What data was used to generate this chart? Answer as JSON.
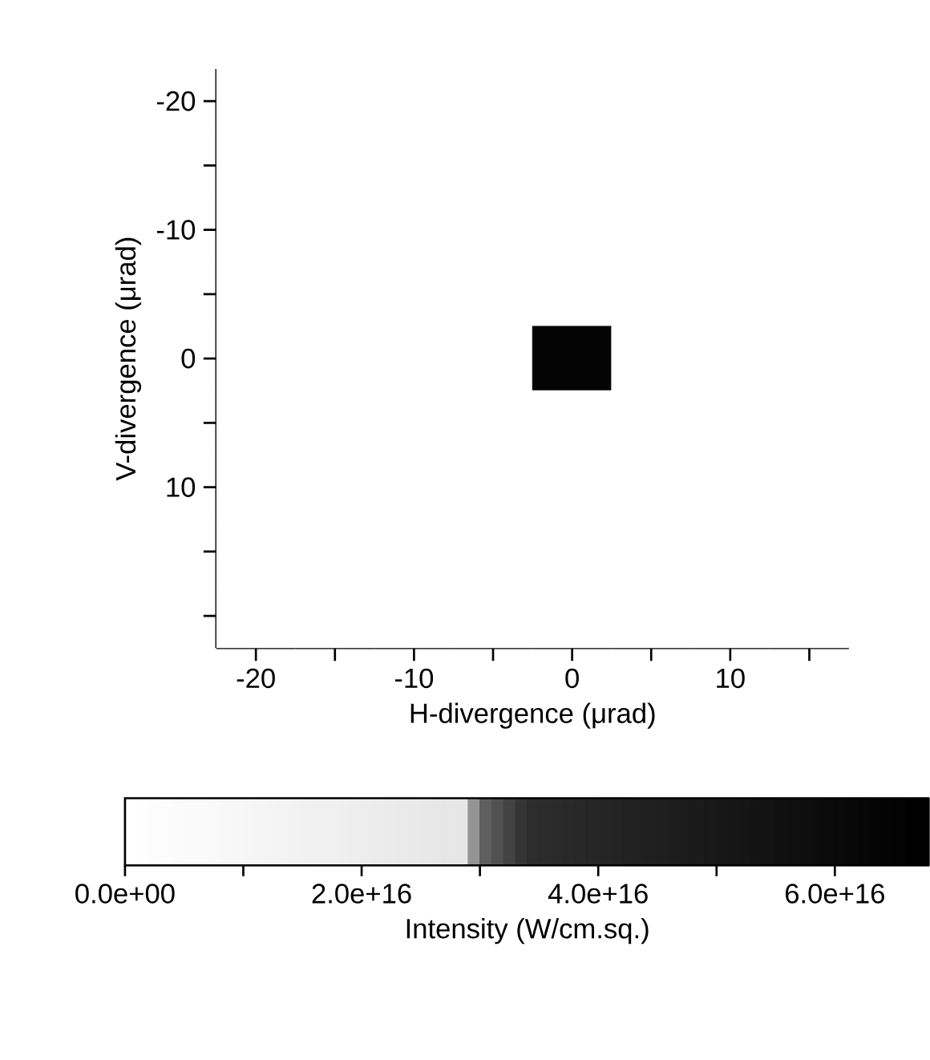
{
  "chart_data": {
    "type": "heatmap",
    "xlabel": "H-divergence  (μrad)",
    "ylabel": "V-divergence  (μrad)",
    "clabel": "Intensity  (W/cm.sq.)",
    "clim": [
      0,
      6.8e+16
    ],
    "cticks": [
      {
        "value": 0,
        "label": "0.0e+00"
      },
      {
        "value": 1e+16,
        "label": null
      },
      {
        "value": 2e+16,
        "label": "2.0e+16"
      },
      {
        "value": 3e+16,
        "label": null
      },
      {
        "value": 4e+16,
        "label": "4.0e+16"
      },
      {
        "value": 5e+16,
        "label": null
      },
      {
        "value": 6e+16,
        "label": "6.0e+16"
      }
    ],
    "categories": [
      "-20",
      null,
      "-10",
      null,
      "0",
      null,
      "10",
      null
    ],
    "y_categories": [
      "-20",
      null,
      "-10",
      null,
      "0",
      null,
      "10",
      null,
      null
    ],
    "cells": [
      [
        0,
        0,
        0,
        0,
        0,
        0,
        0,
        0
      ],
      [
        0,
        0,
        0,
        0,
        0,
        0,
        0,
        0
      ],
      [
        0,
        0,
        0,
        0,
        0,
        0,
        0,
        0
      ],
      [
        0,
        0,
        0,
        0,
        0,
        0,
        0,
        0
      ],
      [
        0,
        0,
        0,
        0,
        6.5e+16,
        0,
        0,
        0
      ],
      [
        0,
        0,
        0,
        0,
        0,
        0,
        0,
        0
      ],
      [
        0,
        0,
        0,
        0,
        0,
        0,
        0,
        0
      ],
      [
        0,
        0,
        0,
        0,
        0,
        0,
        0,
        0
      ],
      [
        0,
        0,
        0,
        0,
        0,
        0,
        0,
        0
      ]
    ]
  }
}
